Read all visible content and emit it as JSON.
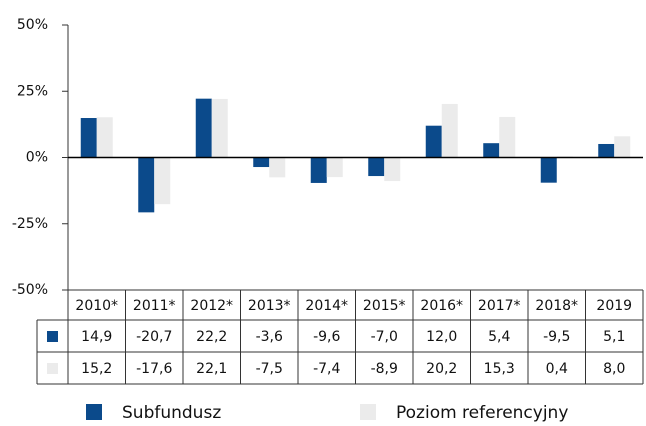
{
  "chart_data": {
    "type": "bar",
    "categories": [
      "2010*",
      "2011*",
      "2012*",
      "2013*",
      "2014*",
      "2015*",
      "2016*",
      "2017*",
      "2018*",
      "2019"
    ],
    "series": [
      {
        "name": "Subfundusz",
        "color": "#0b4a8b",
        "values": [
          14.9,
          -20.7,
          22.2,
          -3.6,
          -9.6,
          -7.0,
          12.0,
          5.4,
          -9.5,
          5.1
        ],
        "value_labels": [
          "14,9",
          "-20,7",
          "22,2",
          "-3,6",
          "-9,6",
          "-7,0",
          "12,0",
          "5,4",
          "-9,5",
          "5,1"
        ]
      },
      {
        "name": "Poziom referencyjny",
        "color": "#ebebeb",
        "values": [
          15.2,
          -17.6,
          22.1,
          -7.5,
          -7.4,
          -8.9,
          20.2,
          15.3,
          0.4,
          8.0
        ],
        "value_labels": [
          "15,2",
          "-17,6",
          "22,1",
          "-7,5",
          "-7,4",
          "-8,9",
          "20,2",
          "15,3",
          "0,4",
          "8,0"
        ]
      }
    ],
    "ylim": [
      -50,
      50
    ],
    "yticks": [
      {
        "value": -50,
        "label": "-50%"
      },
      {
        "value": -25,
        "label": "-25%"
      },
      {
        "value": 0,
        "label": "0%"
      },
      {
        "value": 25,
        "label": "25%"
      },
      {
        "value": 50,
        "label": "50%"
      }
    ]
  }
}
